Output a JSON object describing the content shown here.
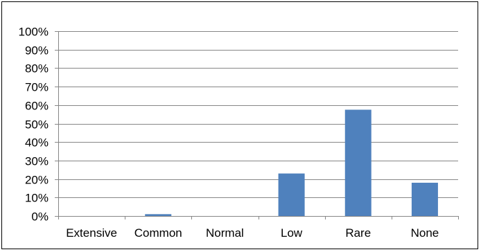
{
  "chart_data": {
    "type": "bar",
    "title": "",
    "xlabel": "",
    "ylabel": "",
    "categories": [
      "Extensive",
      "Common",
      "Normal",
      "Low",
      "Rare",
      "None"
    ],
    "series": [
      {
        "values": [
          0,
          1,
          0,
          23,
          57.5,
          18
        ]
      }
    ],
    "ylim": [
      0,
      100
    ],
    "y_ticks": [
      "0%",
      "10%",
      "20%",
      "30%",
      "40%",
      "50%",
      "60%",
      "70%",
      "80%",
      "90%",
      "100%"
    ],
    "grid": true,
    "legend": "none",
    "bar_color": "#4f81bd",
    "grid_color": "#868686"
  }
}
